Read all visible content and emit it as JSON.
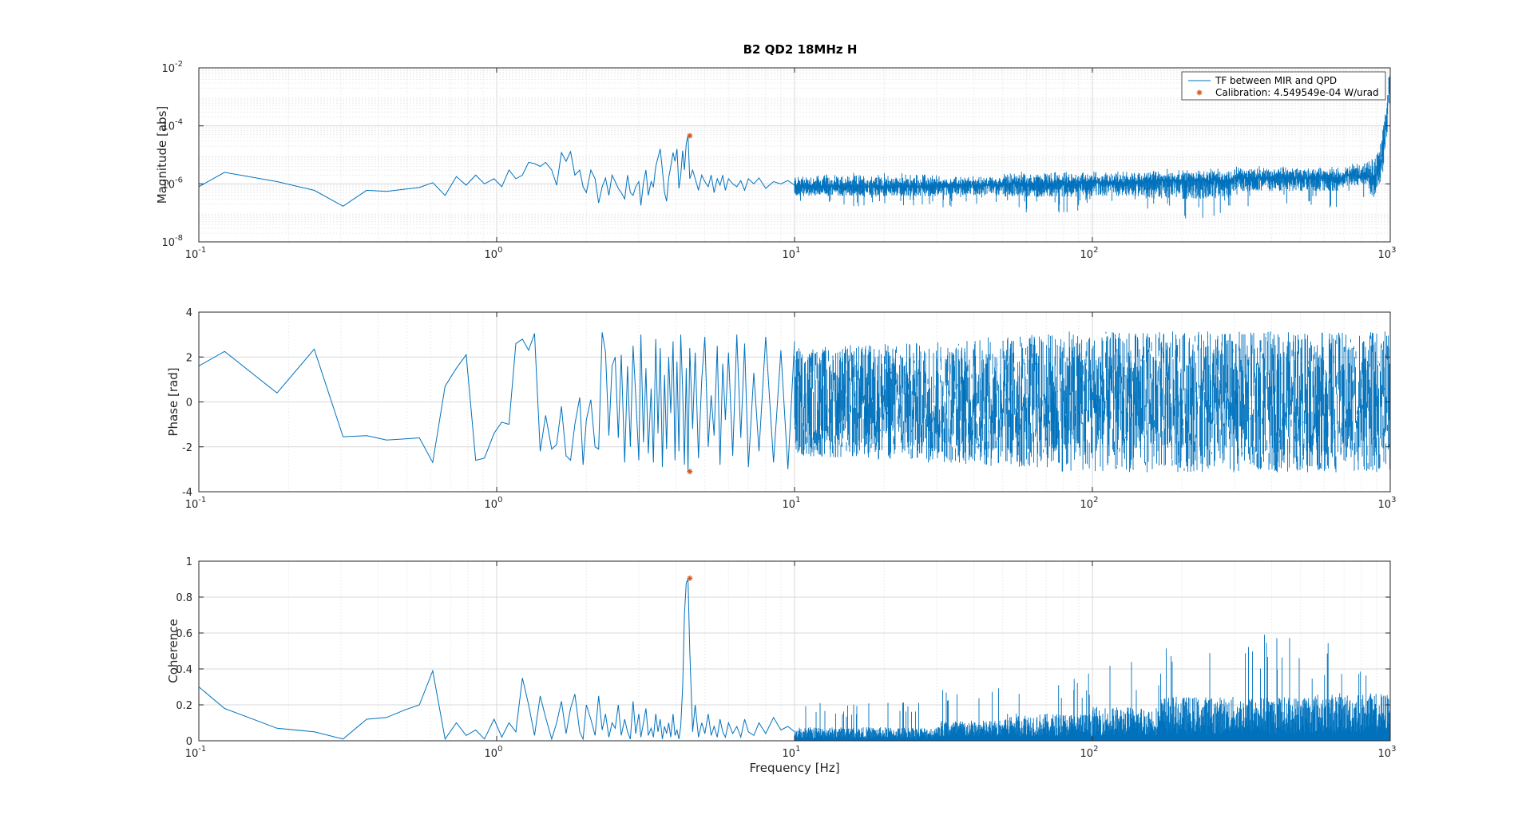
{
  "figure": {
    "title": "B2 QD2 18MHz H"
  },
  "colors": {
    "line": "#0072BD",
    "marker": "#D95319",
    "grid_major": "#d9d9d9",
    "grid_minor": "#ececec",
    "axes": "#262626"
  },
  "chart_data": [
    {
      "type": "line",
      "name": "magnitude",
      "title": "B2 QD2 18MHz H",
      "xlabel": "",
      "ylabel": "Magnitude [abs]",
      "xscale": "log",
      "yscale": "log",
      "xlim": [
        0.1,
        1000
      ],
      "ylim": [
        1e-08,
        0.01
      ],
      "grid": true,
      "x_ticks": [
        {
          "value": 0.1,
          "mant": "10",
          "exp": "-1"
        },
        {
          "value": 1,
          "mant": "10",
          "exp": "0"
        },
        {
          "value": 10,
          "mant": "10",
          "exp": "1"
        },
        {
          "value": 100,
          "mant": "10",
          "exp": "2"
        },
        {
          "value": 1000,
          "mant": "10",
          "exp": "3"
        }
      ],
      "y_ticks": [
        {
          "value": 1e-08,
          "mant": "10",
          "exp": "-8"
        },
        {
          "value": 1e-06,
          "mant": "10",
          "exp": "-6"
        },
        {
          "value": 0.0001,
          "mant": "10",
          "exp": "-4"
        },
        {
          "value": 0.01,
          "mant": "10",
          "exp": "-2"
        }
      ],
      "legend": {
        "placement": "top-right",
        "entries": [
          "TF between MIR and QPD",
          "Calibration: 4.549549e-04 W/urad"
        ]
      },
      "series": [
        {
          "name": "TF between MIR and QPD",
          "x": [
            0.1,
            0.122,
            0.183,
            0.244,
            0.305,
            0.366,
            0.427,
            0.488,
            0.55,
            0.61,
            0.671,
            0.732,
            0.79,
            0.85,
            0.91,
            0.98,
            1.04,
            1.1,
            1.16,
            1.22,
            1.28,
            1.34,
            1.4,
            1.46,
            1.53,
            1.59,
            1.65,
            1.71,
            1.77,
            1.83,
            1.9,
            1.95,
            2.0,
            2.07,
            2.14,
            2.2,
            2.26,
            2.32,
            2.38,
            2.44,
            2.5,
            2.56,
            2.62,
            2.69,
            2.75,
            2.81,
            2.87,
            2.93,
            3.0,
            3.05,
            3.11,
            3.17,
            3.23,
            3.3,
            3.36,
            3.42,
            3.48,
            3.54,
            3.6,
            3.66,
            3.72,
            3.78,
            3.84,
            3.91,
            3.97,
            4.03,
            4.09,
            4.15,
            4.21,
            4.27,
            4.33,
            4.39,
            4.45,
            4.55,
            4.64,
            4.76,
            4.88,
            5.0,
            5.13,
            5.25,
            5.37,
            5.5,
            5.62,
            5.74,
            5.86,
            6.0,
            6.2,
            6.4,
            6.6,
            6.8,
            7.0,
            7.3,
            7.6,
            8.0,
            8.5,
            9.0,
            9.5,
            10.0
          ],
          "y": [
            8e-07,
            2.5e-06,
            1.2e-06,
            6e-07,
            1.7e-07,
            6e-07,
            5.5e-07,
            6.5e-07,
            7.5e-07,
            1.1e-06,
            4e-07,
            1.8e-06,
            9e-07,
            2e-06,
            1e-06,
            1.5e-06,
            8e-07,
            3e-06,
            1.5e-06,
            2e-06,
            5.5e-06,
            5e-06,
            4e-06,
            5.5e-06,
            3e-06,
            9e-07,
            1.2e-05,
            6e-06,
            1.3e-05,
            2e-06,
            3e-06,
            8e-07,
            5e-07,
            3e-06,
            1.5e-06,
            2.2e-07,
            8e-07,
            1.6e-06,
            4e-07,
            2e-06,
            1.2e-06,
            7e-07,
            5e-07,
            3e-07,
            2e-06,
            5e-07,
            4e-07,
            8e-07,
            1.2e-06,
            1.8e-07,
            1.1e-06,
            3e-06,
            4e-07,
            1.2e-06,
            8e-07,
            4e-06,
            8e-06,
            1.6e-05,
            3e-06,
            5e-07,
            2.5e-07,
            1.6e-06,
            4e-06,
            1.2e-05,
            6e-06,
            1.6e-05,
            7e-07,
            2e-06,
            1.4e-05,
            3e-06,
            2.5e-05,
            4.5e-05,
            1.5e-06,
            3e-06,
            1.5e-06,
            6e-07,
            2e-06,
            1.2e-06,
            8e-07,
            2e-06,
            5e-07,
            1.5e-06,
            9e-07,
            2e-06,
            6e-07,
            1.5e-06,
            1e-06,
            8e-07,
            1.3e-06,
            6e-07,
            1.5e-06,
            1e-06,
            1.6e-06,
            7e-07,
            1.2e-06,
            1e-06,
            1.3e-06,
            9e-07
          ],
          "dense_segments": [
            {
              "x_range": [
                10,
                30
              ],
              "center": 8e-07,
              "lo_min": 1.5e-07,
              "hi_max": 2.5e-06
            },
            {
              "x_range": [
                30,
                50
              ],
              "center": 9e-07,
              "lo_min": 1.5e-07,
              "hi_max": 2e-06
            },
            {
              "x_range": [
                50,
                90
              ],
              "center": 1e-06,
              "lo_min": 1e-07,
              "hi_max": 2.8e-06
            },
            {
              "x_range": [
                90,
                150
              ],
              "center": 1.1e-06,
              "lo_min": 1e-07,
              "hi_max": 3e-06
            },
            {
              "x_range": [
                150,
                300
              ],
              "center": 1.3e-06,
              "lo_min": 5e-08,
              "hi_max": 3.5e-06
            },
            {
              "x_range": [
                300,
                700
              ],
              "center": 1.6e-06,
              "lo_min": 1.5e-07,
              "hi_max": 4.5e-06
            },
            {
              "x_range": [
                700,
                850
              ],
              "center": 2e-06,
              "lo_min": 3e-07,
              "hi_max": 6e-06
            },
            {
              "x_range": [
                850,
                1000
              ],
              "center": 2e-05,
              "lo_min": 1e-06,
              "hi_max": 0.01
            }
          ]
        },
        {
          "name": "Calibration: 4.549549e-04 W/urad",
          "type": "scatter",
          "x": [
            4.45
          ],
          "y": [
            4.549549e-05
          ]
        }
      ]
    },
    {
      "type": "line",
      "name": "phase",
      "title": "",
      "xlabel": "",
      "ylabel": "Phase [rad]",
      "xscale": "log",
      "yscale": "linear",
      "xlim": [
        0.1,
        1000
      ],
      "ylim": [
        -4,
        4
      ],
      "grid": true,
      "x_ticks": [
        {
          "value": 0.1,
          "mant": "10",
          "exp": "-1"
        },
        {
          "value": 1,
          "mant": "10",
          "exp": "0"
        },
        {
          "value": 10,
          "mant": "10",
          "exp": "1"
        },
        {
          "value": 100,
          "mant": "10",
          "exp": "2"
        },
        {
          "value": 1000,
          "mant": "10",
          "exp": "3"
        }
      ],
      "y_ticks": [
        {
          "value": -4,
          "label": "-4"
        },
        {
          "value": -2,
          "label": "-2"
        },
        {
          "value": 0,
          "label": "0"
        },
        {
          "value": 2,
          "label": "2"
        },
        {
          "value": 4,
          "label": "4"
        }
      ],
      "series": [
        {
          "name": "TF between MIR and QPD",
          "x": [
            0.1,
            0.122,
            0.183,
            0.244,
            0.305,
            0.366,
            0.427,
            0.488,
            0.55,
            0.61,
            0.671,
            0.732,
            0.79,
            0.85,
            0.91,
            0.98,
            1.04,
            1.1,
            1.16,
            1.22,
            1.28,
            1.34,
            1.4,
            1.46,
            1.53,
            1.59,
            1.65,
            1.71,
            1.77,
            1.83,
            1.9,
            1.95,
            2.0,
            2.07,
            2.14,
            2.2,
            2.26,
            2.32,
            2.38,
            2.44,
            2.5,
            2.56,
            2.62,
            2.69,
            2.75,
            2.81,
            2.87,
            2.93,
            3.0,
            3.05,
            3.11,
            3.17,
            3.23,
            3.3,
            3.36,
            3.42,
            3.48,
            3.54,
            3.6,
            3.66,
            3.72,
            3.78,
            3.84,
            3.91,
            3.97,
            4.03,
            4.09,
            4.15,
            4.21,
            4.27,
            4.33,
            4.39,
            4.45,
            4.55,
            4.64,
            4.76,
            4.88,
            5.0,
            5.13,
            5.25,
            5.37,
            5.5,
            5.62,
            5.74,
            5.86,
            6.0,
            6.2,
            6.4,
            6.6,
            6.8,
            7.0,
            7.3,
            7.6,
            8.0,
            8.5,
            9.0,
            9.5,
            10.0
          ],
          "y": [
            1.6,
            2.25,
            0.4,
            2.35,
            -1.55,
            -1.5,
            -1.7,
            -1.65,
            -1.6,
            -2.7,
            0.7,
            1.5,
            2.1,
            -2.6,
            -2.5,
            -1.4,
            -0.9,
            -1.0,
            2.6,
            2.8,
            2.3,
            3.05,
            -2.2,
            -0.6,
            -2.1,
            -1.9,
            -0.2,
            -2.4,
            -2.6,
            -1.0,
            0.2,
            -2.8,
            -0.8,
            0.1,
            -2.0,
            -2.1,
            3.1,
            2.2,
            -1.5,
            1.6,
            2.0,
            -1.6,
            2.1,
            -2.7,
            1.6,
            -2.0,
            2.5,
            0.3,
            -2.6,
            3.0,
            -1.8,
            1.5,
            -2.3,
            0.6,
            -2.7,
            2.8,
            -1.4,
            2.4,
            -2.9,
            1.2,
            -2.1,
            2.0,
            -0.5,
            2.7,
            -2.6,
            1.8,
            -2.2,
            3.0,
            0.5,
            -2.8,
            1.5,
            -3.1,
            2.4,
            -1.2,
            2.2,
            -2.5,
            1.0,
            2.9,
            -2.0,
            0.3,
            -1.5,
            2.5,
            -2.8,
            1.7,
            -0.8,
            2.2,
            -2.4,
            3.0,
            -1.6,
            2.6,
            -2.9,
            1.3,
            -2.2,
            2.9,
            -2.7,
            2.3,
            -3.0,
            2.7
          ],
          "dense_segments": [
            {
              "x_range": [
                10,
                40
              ],
              "center": 0,
              "lo_min": -3.14,
              "hi_max": 3.14
            },
            {
              "x_range": [
                40,
                100
              ],
              "center": 0,
              "lo_min": -3.14,
              "hi_max": 3.14
            },
            {
              "x_range": [
                100,
                1000
              ],
              "center": 0,
              "lo_min": -3.14,
              "hi_max": 3.14
            }
          ]
        },
        {
          "name": "Calibration: 4.549549e-04 W/urad",
          "type": "scatter",
          "x": [
            4.45
          ],
          "y": [
            -3.1
          ]
        }
      ]
    },
    {
      "type": "line",
      "name": "coherence",
      "title": "",
      "xlabel": "Frequency [Hz]",
      "ylabel": "Coherence",
      "xscale": "log",
      "yscale": "linear",
      "xlim": [
        0.1,
        1000
      ],
      "ylim": [
        0,
        1
      ],
      "grid": true,
      "x_ticks": [
        {
          "value": 0.1,
          "mant": "10",
          "exp": "-1"
        },
        {
          "value": 1,
          "mant": "10",
          "exp": "0"
        },
        {
          "value": 10,
          "mant": "10",
          "exp": "1"
        },
        {
          "value": 100,
          "mant": "10",
          "exp": "2"
        },
        {
          "value": 1000,
          "mant": "10",
          "exp": "3"
        }
      ],
      "y_ticks": [
        {
          "value": 0,
          "label": "0"
        },
        {
          "value": 0.2,
          "label": "0.2"
        },
        {
          "value": 0.4,
          "label": "0.4"
        },
        {
          "value": 0.6,
          "label": "0.6"
        },
        {
          "value": 0.8,
          "label": "0.8"
        },
        {
          "value": 1,
          "label": "1"
        }
      ],
      "series": [
        {
          "name": "TF between MIR and QPD",
          "x": [
            0.1,
            0.122,
            0.183,
            0.244,
            0.305,
            0.366,
            0.427,
            0.488,
            0.55,
            0.61,
            0.671,
            0.732,
            0.79,
            0.85,
            0.91,
            0.98,
            1.04,
            1.1,
            1.16,
            1.22,
            1.28,
            1.34,
            1.4,
            1.46,
            1.53,
            1.59,
            1.65,
            1.71,
            1.77,
            1.83,
            1.9,
            1.95,
            2.0,
            2.07,
            2.14,
            2.2,
            2.26,
            2.32,
            2.38,
            2.44,
            2.5,
            2.56,
            2.62,
            2.69,
            2.75,
            2.81,
            2.87,
            2.93,
            3.0,
            3.05,
            3.11,
            3.17,
            3.23,
            3.3,
            3.36,
            3.42,
            3.48,
            3.54,
            3.6,
            3.66,
            3.72,
            3.78,
            3.84,
            3.91,
            3.97,
            4.03,
            4.09,
            4.15,
            4.21,
            4.27,
            4.33,
            4.39,
            4.45,
            4.55,
            4.64,
            4.76,
            4.88,
            5.0,
            5.13,
            5.25,
            5.37,
            5.5,
            5.62,
            5.74,
            5.86,
            6.0,
            6.2,
            6.4,
            6.6,
            6.8,
            7.0,
            7.3,
            7.6,
            8.0,
            8.5,
            9.0,
            9.5,
            10.0
          ],
          "y": [
            0.3,
            0.18,
            0.07,
            0.05,
            0.01,
            0.12,
            0.13,
            0.17,
            0.2,
            0.39,
            0.01,
            0.1,
            0.03,
            0.06,
            0.01,
            0.12,
            0.02,
            0.1,
            0.05,
            0.35,
            0.2,
            0.03,
            0.25,
            0.13,
            0.01,
            0.1,
            0.22,
            0.04,
            0.18,
            0.26,
            0.05,
            0.01,
            0.2,
            0.12,
            0.03,
            0.25,
            0.06,
            0.15,
            0.02,
            0.1,
            0.07,
            0.2,
            0.03,
            0.12,
            0.05,
            0.01,
            0.22,
            0.04,
            0.15,
            0.02,
            0.1,
            0.18,
            0.03,
            0.07,
            0.02,
            0.15,
            0.05,
            0.12,
            0.01,
            0.08,
            0.04,
            0.1,
            0.02,
            0.15,
            0.03,
            0.06,
            0.01,
            0.08,
            0.3,
            0.7,
            0.88,
            0.9,
            0.5,
            0.05,
            0.2,
            0.02,
            0.1,
            0.04,
            0.15,
            0.03,
            0.08,
            0.02,
            0.12,
            0.05,
            0.02,
            0.1,
            0.04,
            0.08,
            0.02,
            0.12,
            0.05,
            0.03,
            0.1,
            0.04,
            0.13,
            0.06,
            0.08,
            0.05
          ],
          "dense_segments": [
            {
              "x_range": [
                10,
                30
              ],
              "center": 0.04,
              "lo_min": 0,
              "hi_max": 0.22
            },
            {
              "x_range": [
                30,
                50
              ],
              "center": 0.06,
              "lo_min": 0,
              "hi_max": 0.3
            },
            {
              "x_range": [
                50,
                100
              ],
              "center": 0.08,
              "lo_min": 0,
              "hi_max": 0.38
            },
            {
              "x_range": [
                100,
                170
              ],
              "center": 0.1,
              "lo_min": 0,
              "hi_max": 0.45
            },
            {
              "x_range": [
                170,
                500
              ],
              "center": 0.13,
              "lo_min": 0,
              "hi_max": 0.64
            },
            {
              "x_range": [
                500,
                1000
              ],
              "center": 0.14,
              "lo_min": 0,
              "hi_max": 0.55
            }
          ]
        },
        {
          "name": "Calibration: 4.549549e-04 W/urad",
          "type": "scatter",
          "x": [
            4.45
          ],
          "y": [
            0.905
          ]
        }
      ]
    }
  ]
}
